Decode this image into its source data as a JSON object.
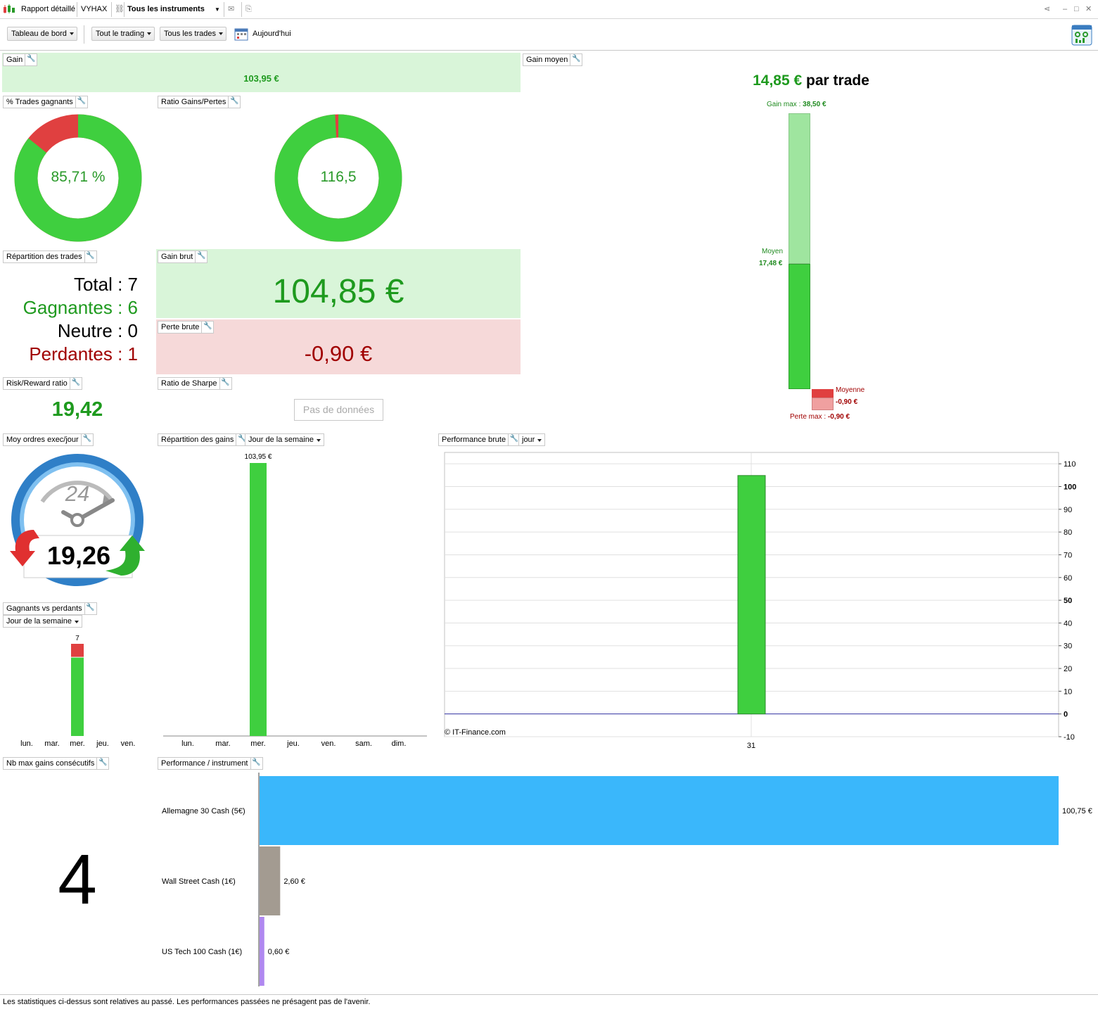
{
  "titlebar": {
    "app_label": "Rapport détaillé",
    "account": "VYHAX",
    "instruments": "Tous les instruments"
  },
  "toolbar": {
    "dashboard": "Tableau de bord",
    "trading": "Tout le trading",
    "trades": "Tous les trades",
    "date": "Aujourd'hui"
  },
  "gain": {
    "header": "Gain",
    "value": "103,95 €"
  },
  "gain_moyen": {
    "header": "Gain moyen",
    "value": "14,85 €",
    "suffix": "par trade",
    "gain_max_label": "Gain max :",
    "gain_max_value": "38,50 €",
    "moyen_label": "Moyen",
    "moyen_value": "17,48 €",
    "moyenne_label": "Moyenne",
    "moyenne_value": "-0,90 €",
    "perte_max_label": "Perte max :",
    "perte_max_value": "-0,90 €",
    "gain_max": 38.5,
    "gain_avg": 17.48,
    "loss_avg": -0.9,
    "loss_max": -0.9
  },
  "pct_trades": {
    "header": "% Trades gagnants",
    "value": "85,71 %",
    "fraction": 0.8571
  },
  "ratio_gp": {
    "header": "Ratio Gains/Pertes",
    "value": "116,5",
    "fraction": 0.9915
  },
  "repartition": {
    "header": "Répartition des trades",
    "total": "Total : 7",
    "gagnantes": "Gagnantes : 6",
    "neutre": "Neutre : 0",
    "perdantes": "Perdantes : 1"
  },
  "gain_brut": {
    "header": "Gain brut",
    "value": "104,85 €"
  },
  "perte_brute": {
    "header": "Perte brute",
    "value": "-0,90 €"
  },
  "risk_reward": {
    "header": "Risk/Reward ratio",
    "value": "19,42"
  },
  "sharpe": {
    "header": "Ratio de Sharpe",
    "no_data": "Pas de données"
  },
  "moy_ordres": {
    "header": "Moy ordres exec/jour",
    "value": "19,26",
    "clock_label": "24"
  },
  "rep_gains": {
    "header": "Répartition des gains",
    "selector": "Jour de la semaine"
  },
  "perf_brute": {
    "header": "Performance brute",
    "selector": "jour",
    "copyright": "© IT-Finance.com"
  },
  "gvp": {
    "header": "Gagnants vs perdants",
    "selector": "Jour de la semaine"
  },
  "nb_max": {
    "header": "Nb max gains consécutifs",
    "value": "4"
  },
  "perf_instr": {
    "header": "Performance / instrument"
  },
  "footer": "Les statistiques ci-dessus sont relatives au passé. Les performances passées ne présagent pas de l'avenir.",
  "chart_data": [
    {
      "type": "bar",
      "categories": [
        "lun.",
        "mar.",
        "mer.",
        "jeu.",
        "ven."
      ],
      "series": [
        {
          "values": [
            0,
            0,
            6,
            0,
            0
          ]
        },
        {
          "values": [
            0,
            0,
            1,
            0,
            0
          ]
        }
      ],
      "data_labels": [
        "",
        "",
        "7",
        "",
        ""
      ],
      "colors": [
        "#3fcf3f",
        "#e04040"
      ]
    },
    {
      "type": "bar",
      "categories": [
        "lun.",
        "mar.",
        "mer.",
        "jeu.",
        "ven.",
        "sam.",
        "dim."
      ],
      "values": [
        0,
        0,
        103.95,
        0,
        0,
        0,
        0
      ],
      "data_labels": [
        "",
        "",
        "103,95 €",
        "",
        "",
        "",
        ""
      ]
    },
    {
      "type": "bar",
      "categories": [
        "31"
      ],
      "values": [
        104.85
      ],
      "ylim": [
        -10,
        115
      ],
      "yticks": [
        110,
        100,
        90,
        80,
        70,
        60,
        50,
        40,
        30,
        20,
        10,
        0,
        -10
      ],
      "ytick_labels": [
        "110",
        "100",
        "90",
        "80",
        "70",
        "60",
        "50",
        "40",
        "30",
        "20",
        "10",
        "0",
        "-10"
      ]
    },
    {
      "type": "bar",
      "orientation": "horizontal",
      "categories": [
        "Allemagne 30 Cash (5€)",
        "Wall Street Cash (1€)",
        "US Tech 100 Cash (1€)"
      ],
      "values": [
        100.75,
        2.6,
        0.6
      ],
      "data_labels": [
        "100,75 €",
        "2,60 €",
        "0,60 €"
      ],
      "colors": [
        "#3ab7fb",
        "#a39b91",
        "#b088f0"
      ]
    }
  ]
}
